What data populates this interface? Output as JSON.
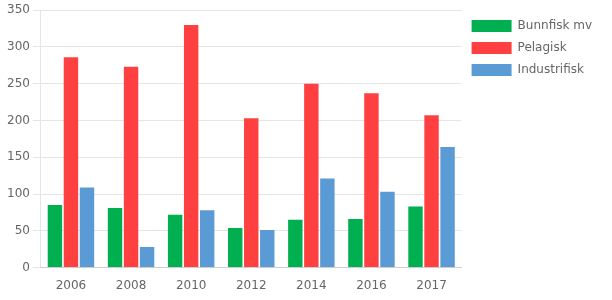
{
  "chart_data": {
    "type": "bar",
    "categories": [
      "2006",
      "2008",
      "2010",
      "2012",
      "2014",
      "2016",
      "2017"
    ],
    "series": [
      {
        "name": "Bunnfisk mv",
        "color": "#00B050",
        "values": [
          85,
          81,
          72,
          54,
          65,
          66,
          83
        ]
      },
      {
        "name": "Pelagisk",
        "color": "#FF4040",
        "values": [
          286,
          273,
          330,
          203,
          250,
          237,
          207
        ]
      },
      {
        "name": "Industrifisk",
        "color": "#5B9BD5",
        "values": [
          109,
          28,
          78,
          51,
          121,
          103,
          164
        ]
      }
    ],
    "ylim": [
      0,
      350
    ],
    "yticks": [
      0,
      50,
      100,
      150,
      200,
      250,
      300,
      350
    ],
    "grid": true,
    "legend": "right"
  }
}
